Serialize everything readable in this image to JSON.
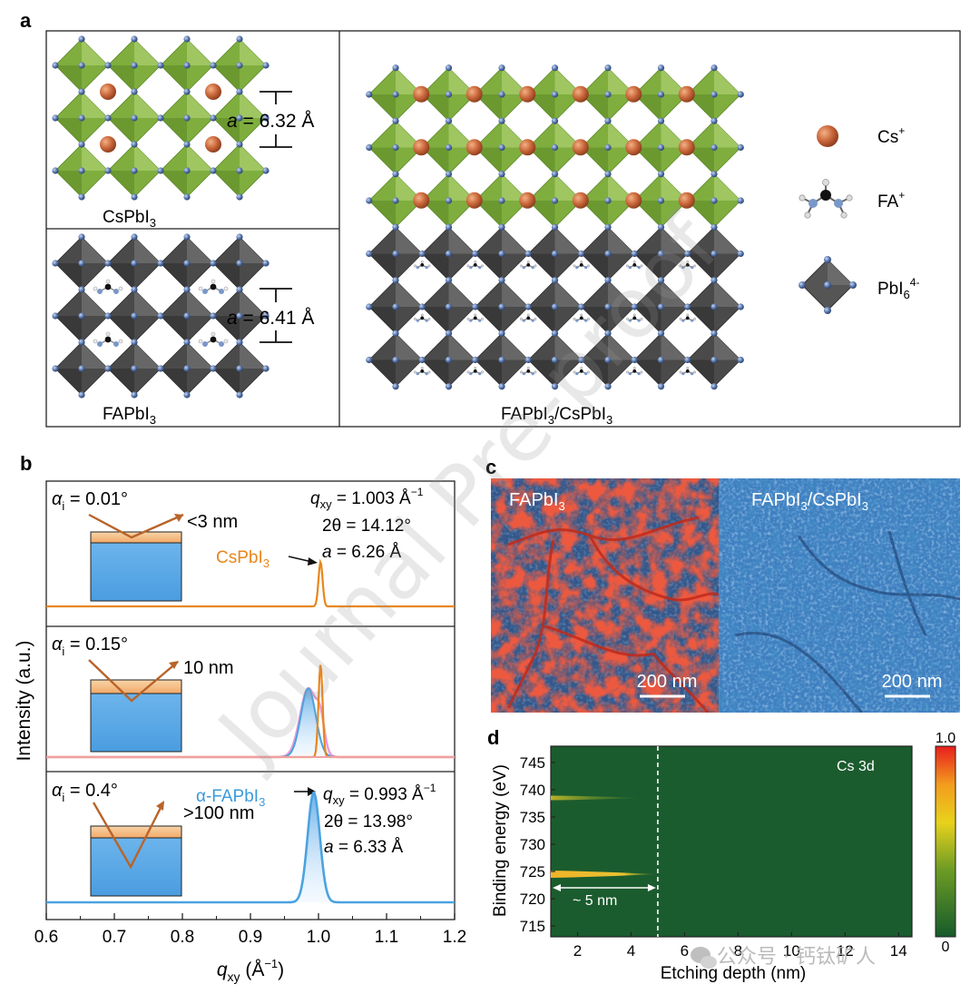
{
  "panel_labels": {
    "a": "a",
    "b": "b",
    "c": "c",
    "d": "d"
  },
  "panel_a": {
    "cspbi3": {
      "label": "CsPbI",
      "sub": "3",
      "lattice_sym": "a",
      "lattice_val": " = 6.32 Å"
    },
    "fapbi3": {
      "label": "FAPbI",
      "sub": "3",
      "lattice_sym": "a",
      "lattice_val": " = 6.41 Å"
    },
    "hetero": {
      "label": "FAPbI",
      "sub1": "3",
      "mid": "/CsPbI",
      "sub2": "3"
    },
    "legend": [
      {
        "name": "cs-legend",
        "label": "Cs",
        "sup": "+"
      },
      {
        "name": "fa-legend",
        "label": "FA",
        "sup": "+"
      },
      {
        "name": "pbi6-legend",
        "label": "PbI",
        "sub": "6",
        "sup": "4-"
      }
    ],
    "colors": {
      "green": "#8db84a",
      "gray": "#4f4f4f",
      "cs": "#c8663a",
      "node": "#4f6fa8"
    }
  },
  "panel_b": {
    "panels": [
      {
        "alpha_sym": "α",
        "alpha_sub": "i",
        "alpha_val": " = 0.01°",
        "depth": "<3 nm",
        "phase_label": "CsPbI",
        "phase_sub": "3",
        "q_sym": "q",
        "q_sub": "xy",
        "q_val": " = 1.003 Å",
        "q_sup": "−1",
        "two_theta": "2θ = 14.12°",
        "a_sym": "a",
        "a_val": " = 6.26 Å"
      },
      {
        "alpha_sym": "α",
        "alpha_sub": "i",
        "alpha_val": " = 0.15°",
        "depth": "10 nm"
      },
      {
        "alpha_sym": "α",
        "alpha_sub": "i",
        "alpha_val": " = 0.4°",
        "depth": ">100 nm",
        "phase_label": "α-FAPbI",
        "phase_sub": "3",
        "q_sym": "q",
        "q_sub": "xy",
        "q_val": " = 0.993 Å",
        "q_sup": "−1",
        "two_theta": "2θ = 13.98°",
        "a_sym": "a",
        "a_val": " = 6.33 Å"
      }
    ],
    "ylabel": "Intensity (a.u.)",
    "xlabel_sym": "q",
    "xlabel_sub": "xy",
    "xlabel_unit": " (Å",
    "xlabel_sup": "−1",
    "xlabel_end": ")",
    "xticks": [
      "0.6",
      "0.7",
      "0.8",
      "0.9",
      "1.0",
      "1.1",
      "1.2"
    ]
  },
  "panel_c": {
    "left_label": "FAPbI",
    "left_sub": "3",
    "right_label": "FAPbI",
    "right_sub1": "3",
    "right_mid": "/CsPbI",
    "right_sub2": "3",
    "scale_left": "200 nm",
    "scale_right": "200 nm"
  },
  "panel_d": {
    "annotation": "Cs 3d",
    "depth_note": "~ 5 nm",
    "ylabel": "Binding energy (eV)",
    "xlabel": "Etching depth (nm)",
    "colorbar_max": "1.0",
    "colorbar_min": "0"
  },
  "watermark": "Journal Pre-proof",
  "social_watermark": "公众号 · 钙钛矿人",
  "chart_data": [
    {
      "type": "line",
      "title": "",
      "xlabel": "qxy (Å−1)",
      "ylabel": "Intensity (a.u.)",
      "xlim": [
        0.6,
        1.2
      ],
      "x_ticks": [
        0.6,
        0.7,
        0.8,
        0.9,
        1.0,
        1.1,
        1.2
      ],
      "series": [
        {
          "name": "α_i = 0.01° CsPbI3 peak",
          "peak_center": 1.003,
          "peak_width": 0.003,
          "relative_height": 0.7,
          "color": "#e8861c"
        },
        {
          "name": "α_i = 0.15° CsPbI3 peak",
          "peak_center": 1.003,
          "peak_width": 0.003,
          "relative_height": 0.85,
          "color": "#e8861c"
        },
        {
          "name": "α_i = 0.15° α-FAPbI3 peak",
          "peak_center": 0.985,
          "peak_width": 0.011,
          "relative_height": 0.63,
          "color": "#4aa3df"
        },
        {
          "name": "α_i = 0.4° α-FAPbI3 peak",
          "peak_center": 0.993,
          "peak_width": 0.009,
          "relative_height": 0.93,
          "color": "#4aa3df"
        }
      ]
    },
    {
      "type": "heatmap",
      "title": "Cs 3d",
      "xlabel": "Etching depth (nm)",
      "ylabel": "Binding energy (eV)",
      "xlim": [
        1,
        14.5
      ],
      "ylim": [
        713,
        748
      ],
      "x_ticks": [
        2,
        4,
        6,
        8,
        10,
        12,
        14
      ],
      "y_ticks": [
        715,
        720,
        725,
        730,
        735,
        740,
        745
      ],
      "bands": [
        {
          "binding_energy": 724.5,
          "depth_range": [
            1,
            4.9
          ],
          "intensity_max": 1.0
        },
        {
          "binding_energy": 738.5,
          "depth_range": [
            1,
            4.3
          ],
          "intensity_max": 0.55
        }
      ],
      "boundary_depth": 5,
      "colorbar": {
        "min": 0,
        "max": 1.0
      }
    }
  ]
}
